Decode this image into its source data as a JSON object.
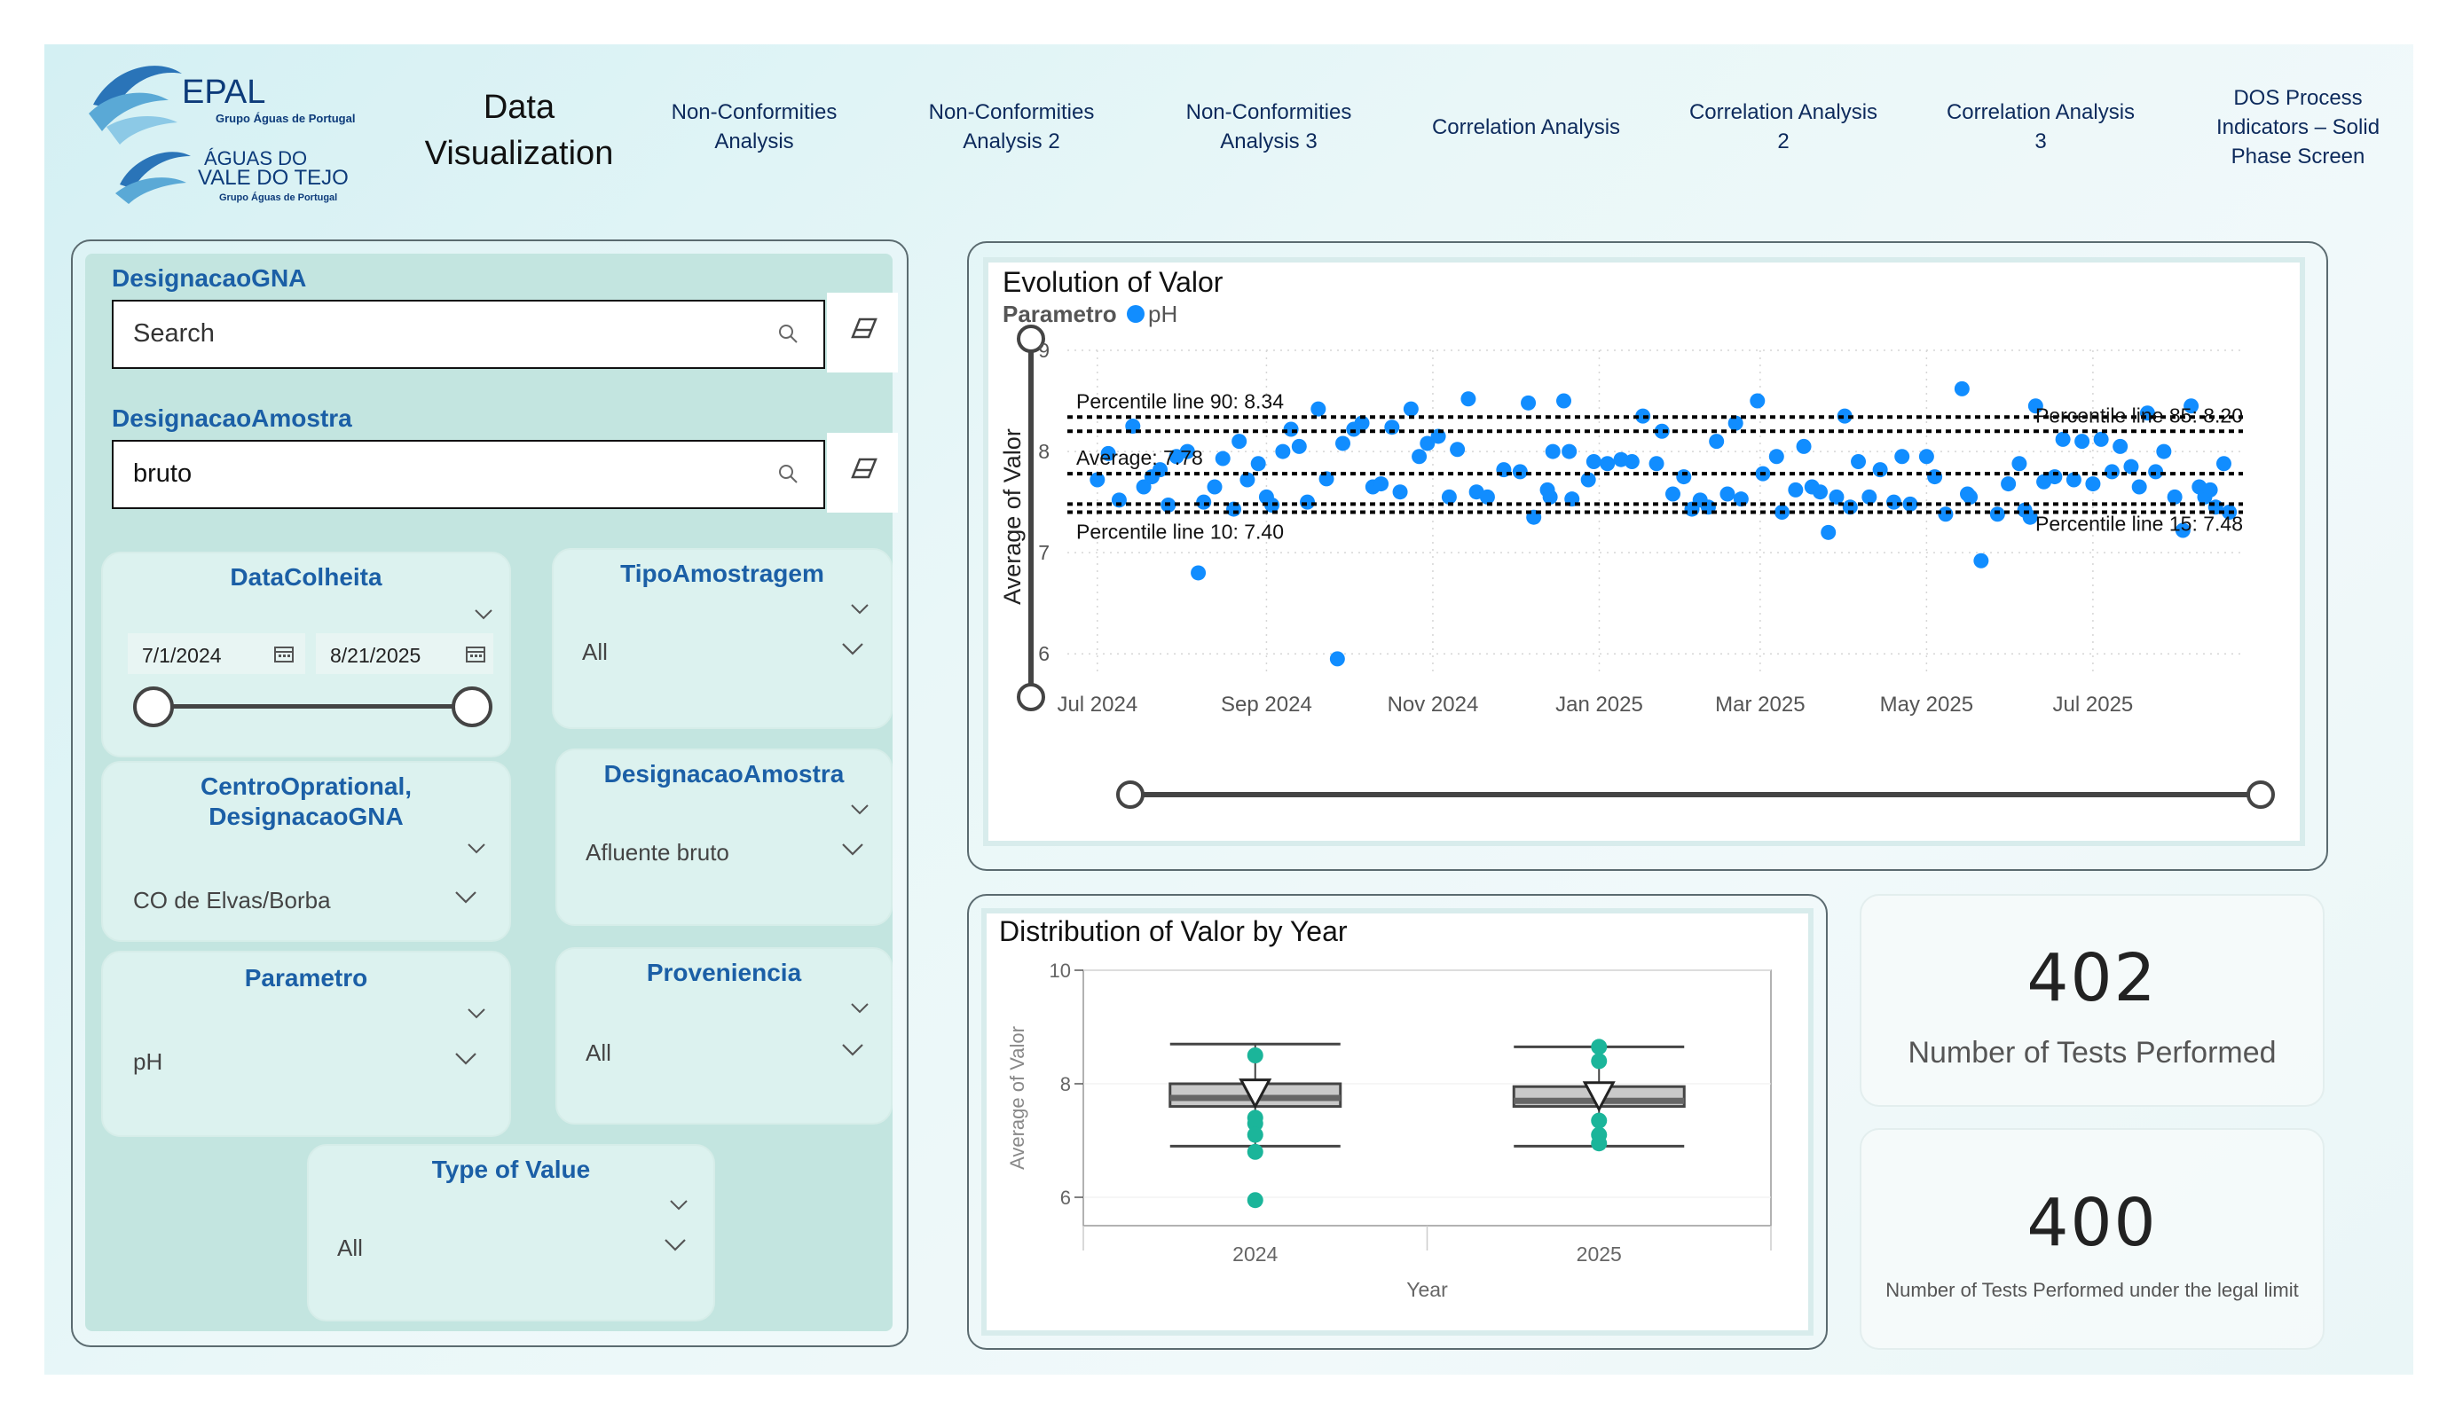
{
  "colors": {
    "accent": "#1b5fa6",
    "point": "#118dff",
    "box_point": "#1bb59a",
    "panel_fill": "#c3e5e0"
  },
  "logos": {
    "epal": {
      "name": "EPAL",
      "subtitle": "Grupo Águas de Portugal"
    },
    "avt": {
      "line1": "ÁGUAS DO",
      "line2": "VALE DO TEJO",
      "subtitle": "Grupo Águas de Portugal"
    }
  },
  "header": {
    "title_line1": "Data",
    "title_line2": "Visualization",
    "nav": [
      {
        "line1": "Non-Conformities",
        "line2": "Analysis"
      },
      {
        "line1": "Non-Conformities",
        "line2": "Analysis 2"
      },
      {
        "line1": "Non-Conformities",
        "line2": "Analysis 3"
      },
      {
        "line1": "Correlation Analysis",
        "line2": ""
      },
      {
        "line1": "Correlation Analysis",
        "line2": "2"
      },
      {
        "line1": "Correlation Analysis",
        "line2": "3"
      },
      {
        "line1": "DOS Process",
        "line2": "Indicators – Solid",
        "line3": "Phase Screen"
      }
    ]
  },
  "filters": {
    "search1": {
      "label": "DesignacaoGNA",
      "value": "",
      "placeholder": "Search"
    },
    "search2": {
      "label": "DesignacaoAmostra",
      "value": "bruto"
    },
    "date": {
      "label": "DataColheita",
      "start": "7/1/2024",
      "end": "8/21/2025"
    },
    "tipo": {
      "label": "TipoAmostragem",
      "value": "All"
    },
    "centro": {
      "label_line1": "CentroOprational,",
      "label_line2": "DesignacaoGNA",
      "value": "CO de Elvas/Borba"
    },
    "amostra": {
      "label": "DesignacaoAmostra",
      "value": "Afluente bruto"
    },
    "parametro": {
      "label": "Parametro",
      "value": "pH"
    },
    "proveniencia": {
      "label": "Proveniencia",
      "value": "All"
    },
    "type_value": {
      "label": "Type of Value",
      "value": "All"
    }
  },
  "kpis": [
    {
      "value": "402",
      "label": "Number of Tests Performed"
    },
    {
      "value": "400",
      "label": "Number of Tests Performed under the legal limit"
    }
  ],
  "chart_data": [
    {
      "type": "scatter",
      "title": "Evolution of Valor",
      "legend_title": "Parametro",
      "legend_position": "top-left",
      "ylabel": "Average of Valor",
      "xlabel": "",
      "ylim": [
        5.8,
        9.0
      ],
      "yticks": [
        9,
        8,
        7,
        6
      ],
      "xlim": [
        "2024-06-20",
        "2025-08-25"
      ],
      "xticks": [
        {
          "date": "2024-07-01",
          "label": "Jul 2024"
        },
        {
          "date": "2024-09-01",
          "label": "Sep 2024"
        },
        {
          "date": "2024-11-01",
          "label": "Nov 2024"
        },
        {
          "date": "2025-01-01",
          "label": "Jan 2025"
        },
        {
          "date": "2025-03-01",
          "label": "Mar 2025"
        },
        {
          "date": "2025-05-01",
          "label": "May 2025"
        },
        {
          "date": "2025-07-01",
          "label": "Jul 2025"
        }
      ],
      "grid": true,
      "reference_lines": [
        {
          "value": 8.34,
          "label": "Percentile line 90: 8.34",
          "label_side": "left",
          "label_pos": "above"
        },
        {
          "value": 8.2,
          "label": "Percentile line 85: 8.20",
          "label_side": "right",
          "label_pos": "above"
        },
        {
          "value": 7.78,
          "label": "Average: 7.78",
          "label_side": "left",
          "label_pos": "above"
        },
        {
          "value": 7.48,
          "label": "Percentile line 15: 7.48",
          "label_side": "right",
          "label_pos": "below"
        },
        {
          "value": 7.4,
          "label": "Percentile line 10: 7.40",
          "label_side": "left",
          "label_pos": "below"
        }
      ],
      "series": [
        {
          "name": "pH",
          "points": [
            [
              "2024-07-01",
              7.72
            ],
            [
              "2024-07-05",
              7.98
            ],
            [
              "2024-07-09",
              7.52
            ],
            [
              "2024-07-14",
              8.25
            ],
            [
              "2024-07-18",
              7.65
            ],
            [
              "2024-07-21",
              7.75
            ],
            [
              "2024-07-24",
              7.82
            ],
            [
              "2024-07-27",
              7.47
            ],
            [
              "2024-07-30",
              7.95
            ],
            [
              "2024-08-03",
              8.0
            ],
            [
              "2024-08-07",
              6.8
            ],
            [
              "2024-08-09",
              7.5
            ],
            [
              "2024-08-13",
              7.65
            ],
            [
              "2024-08-16",
              7.93
            ],
            [
              "2024-08-20",
              7.43
            ],
            [
              "2024-08-22",
              8.1
            ],
            [
              "2024-08-25",
              7.72
            ],
            [
              "2024-08-29",
              7.88
            ],
            [
              "2024-09-01",
              7.55
            ],
            [
              "2024-09-03",
              7.47
            ],
            [
              "2024-09-07",
              8.0
            ],
            [
              "2024-09-10",
              8.22
            ],
            [
              "2024-09-13",
              8.05
            ],
            [
              "2024-09-16",
              7.5
            ],
            [
              "2024-09-20",
              8.42
            ],
            [
              "2024-09-23",
              7.73
            ],
            [
              "2024-09-27",
              5.95
            ],
            [
              "2024-09-29",
              8.08
            ],
            [
              "2024-10-03",
              8.22
            ],
            [
              "2024-10-06",
              8.28
            ],
            [
              "2024-10-10",
              7.65
            ],
            [
              "2024-10-13",
              7.68
            ],
            [
              "2024-10-17",
              8.24
            ],
            [
              "2024-10-20",
              7.6
            ],
            [
              "2024-10-24",
              8.42
            ],
            [
              "2024-10-27",
              7.95
            ],
            [
              "2024-10-30",
              8.08
            ],
            [
              "2024-11-03",
              8.15
            ],
            [
              "2024-11-07",
              7.55
            ],
            [
              "2024-11-10",
              8.02
            ],
            [
              "2024-11-14",
              8.52
            ],
            [
              "2024-11-17",
              7.6
            ],
            [
              "2024-11-21",
              7.55
            ],
            [
              "2024-11-27",
              7.82
            ],
            [
              "2024-12-03",
              7.8
            ],
            [
              "2024-12-06",
              8.48
            ],
            [
              "2024-12-08",
              7.35
            ],
            [
              "2024-12-13",
              7.62
            ],
            [
              "2024-12-14",
              7.55
            ],
            [
              "2024-12-15",
              8.0
            ],
            [
              "2024-12-19",
              8.5
            ],
            [
              "2024-12-21",
              8.0
            ],
            [
              "2024-12-22",
              7.53
            ],
            [
              "2024-12-28",
              7.72
            ],
            [
              "2024-12-30",
              7.9
            ],
            [
              "2025-01-04",
              7.88
            ],
            [
              "2025-01-09",
              7.92
            ],
            [
              "2025-01-13",
              7.9
            ],
            [
              "2025-01-17",
              8.35
            ],
            [
              "2025-01-22",
              7.88
            ],
            [
              "2025-01-24",
              8.2
            ],
            [
              "2025-01-28",
              7.58
            ],
            [
              "2025-02-01",
              7.75
            ],
            [
              "2025-02-04",
              7.43
            ],
            [
              "2025-02-07",
              7.52
            ],
            [
              "2025-02-10",
              7.45
            ],
            [
              "2025-02-13",
              8.1
            ],
            [
              "2025-02-17",
              7.58
            ],
            [
              "2025-02-20",
              8.28
            ],
            [
              "2025-02-22",
              7.53
            ],
            [
              "2025-02-28",
              8.5
            ],
            [
              "2025-03-02",
              7.78
            ],
            [
              "2025-03-07",
              7.95
            ],
            [
              "2025-03-09",
              7.4
            ],
            [
              "2025-03-14",
              7.62
            ],
            [
              "2025-03-17",
              8.05
            ],
            [
              "2025-03-20",
              7.65
            ],
            [
              "2025-03-23",
              7.6
            ],
            [
              "2025-03-26",
              7.2
            ],
            [
              "2025-03-29",
              7.55
            ],
            [
              "2025-04-01",
              8.35
            ],
            [
              "2025-04-03",
              7.45
            ],
            [
              "2025-04-06",
              7.9
            ],
            [
              "2025-04-10",
              7.55
            ],
            [
              "2025-04-14",
              7.82
            ],
            [
              "2025-04-19",
              7.5
            ],
            [
              "2025-04-22",
              7.95
            ],
            [
              "2025-04-25",
              7.48
            ],
            [
              "2025-05-01",
              7.95
            ],
            [
              "2025-05-04",
              7.75
            ],
            [
              "2025-05-08",
              7.38
            ],
            [
              "2025-05-14",
              8.62
            ],
            [
              "2025-05-16",
              7.58
            ],
            [
              "2025-05-17",
              7.55
            ],
            [
              "2025-05-21",
              6.92
            ],
            [
              "2025-05-27",
              7.38
            ],
            [
              "2025-05-31",
              7.68
            ],
            [
              "2025-06-04",
              7.88
            ],
            [
              "2025-06-06",
              7.42
            ],
            [
              "2025-06-08",
              7.35
            ],
            [
              "2025-06-10",
              8.45
            ],
            [
              "2025-06-13",
              7.7
            ],
            [
              "2025-06-17",
              7.75
            ],
            [
              "2025-06-20",
              8.12
            ],
            [
              "2025-06-24",
              7.72
            ],
            [
              "2025-06-27",
              8.1
            ],
            [
              "2025-07-01",
              7.68
            ],
            [
              "2025-07-04",
              8.12
            ],
            [
              "2025-07-08",
              7.8
            ],
            [
              "2025-07-11",
              8.05
            ],
            [
              "2025-07-15",
              7.85
            ],
            [
              "2025-07-18",
              7.65
            ],
            [
              "2025-07-21",
              8.38
            ],
            [
              "2025-07-24",
              7.8
            ],
            [
              "2025-07-27",
              8.0
            ],
            [
              "2025-07-31",
              7.55
            ],
            [
              "2025-08-03",
              7.22
            ],
            [
              "2025-08-06",
              8.45
            ],
            [
              "2025-08-09",
              7.65
            ],
            [
              "2025-08-11",
              7.55
            ],
            [
              "2025-08-13",
              7.62
            ],
            [
              "2025-08-15",
              7.45
            ],
            [
              "2025-08-18",
              7.88
            ],
            [
              "2025-08-20",
              7.4
            ]
          ]
        }
      ]
    },
    {
      "type": "box",
      "title": "Distribution of Valor by Year",
      "xlabel": "Year",
      "ylabel": "Average of Valor",
      "ylim": [
        5.5,
        10.0
      ],
      "yticks": [
        10,
        8,
        6
      ],
      "categories": [
        "2024",
        "2025"
      ],
      "boxes": [
        {
          "category": "2024",
          "whisker_low": 6.9,
          "q1": 7.6,
          "median": 7.75,
          "q3": 8.0,
          "whisker_high": 8.7,
          "mean": 7.85,
          "outliers": [
            8.5,
            7.4,
            7.3,
            7.1,
            6.8,
            5.95
          ]
        },
        {
          "category": "2025",
          "whisker_low": 6.9,
          "q1": 7.6,
          "median": 7.7,
          "q3": 7.95,
          "whisker_high": 8.65,
          "mean": 7.8,
          "outliers": [
            8.65,
            8.4,
            7.35,
            7.1,
            6.95
          ]
        }
      ]
    }
  ]
}
